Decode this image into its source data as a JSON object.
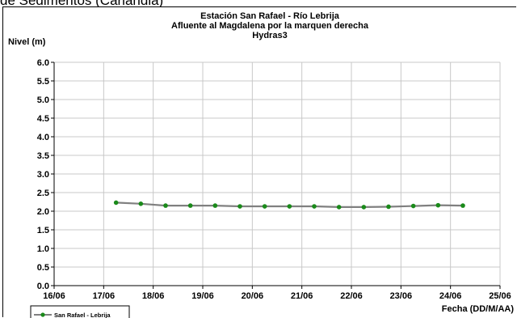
{
  "top_caption": "de Sedimentos (Carlandia)",
  "colors": {
    "line": "#808080",
    "marker": "#1a8a1a",
    "grid": "#c8c8c8",
    "axis": "#000000"
  },
  "chart_data": {
    "type": "line",
    "title_lines": [
      "Estación San Rafael - Río Lebrija",
      "Afluente al Magdalena por la marquen derecha",
      "Hydras3"
    ],
    "ylabel": "Nivel (m)",
    "xlabel": "Fecha (DD/M/AA)",
    "ylim": [
      0.0,
      6.0
    ],
    "y_ticks": [
      "0.0",
      "0.5",
      "1.0",
      "1.5",
      "2.0",
      "2.5",
      "3.0",
      "3.5",
      "4.0",
      "4.5",
      "5.0",
      "5.5",
      "6.0"
    ],
    "xlim": [
      16,
      25
    ],
    "x_ticks": [
      "16/06",
      "17/06",
      "18/06",
      "19/06",
      "20/06",
      "21/06",
      "22/06",
      "23/06",
      "24/06",
      "25/06"
    ],
    "grid": true,
    "legend_position": "bottom-left",
    "series": [
      {
        "name": "San Rafael  - Lebrija",
        "x": [
          17.25,
          17.75,
          18.25,
          18.75,
          19.25,
          19.75,
          20.25,
          20.75,
          21.25,
          21.75,
          22.25,
          22.75,
          23.25,
          23.75,
          24.25
        ],
        "y": [
          2.23,
          2.2,
          2.15,
          2.15,
          2.15,
          2.13,
          2.13,
          2.13,
          2.13,
          2.11,
          2.11,
          2.12,
          2.14,
          2.16,
          2.15
        ]
      }
    ]
  }
}
